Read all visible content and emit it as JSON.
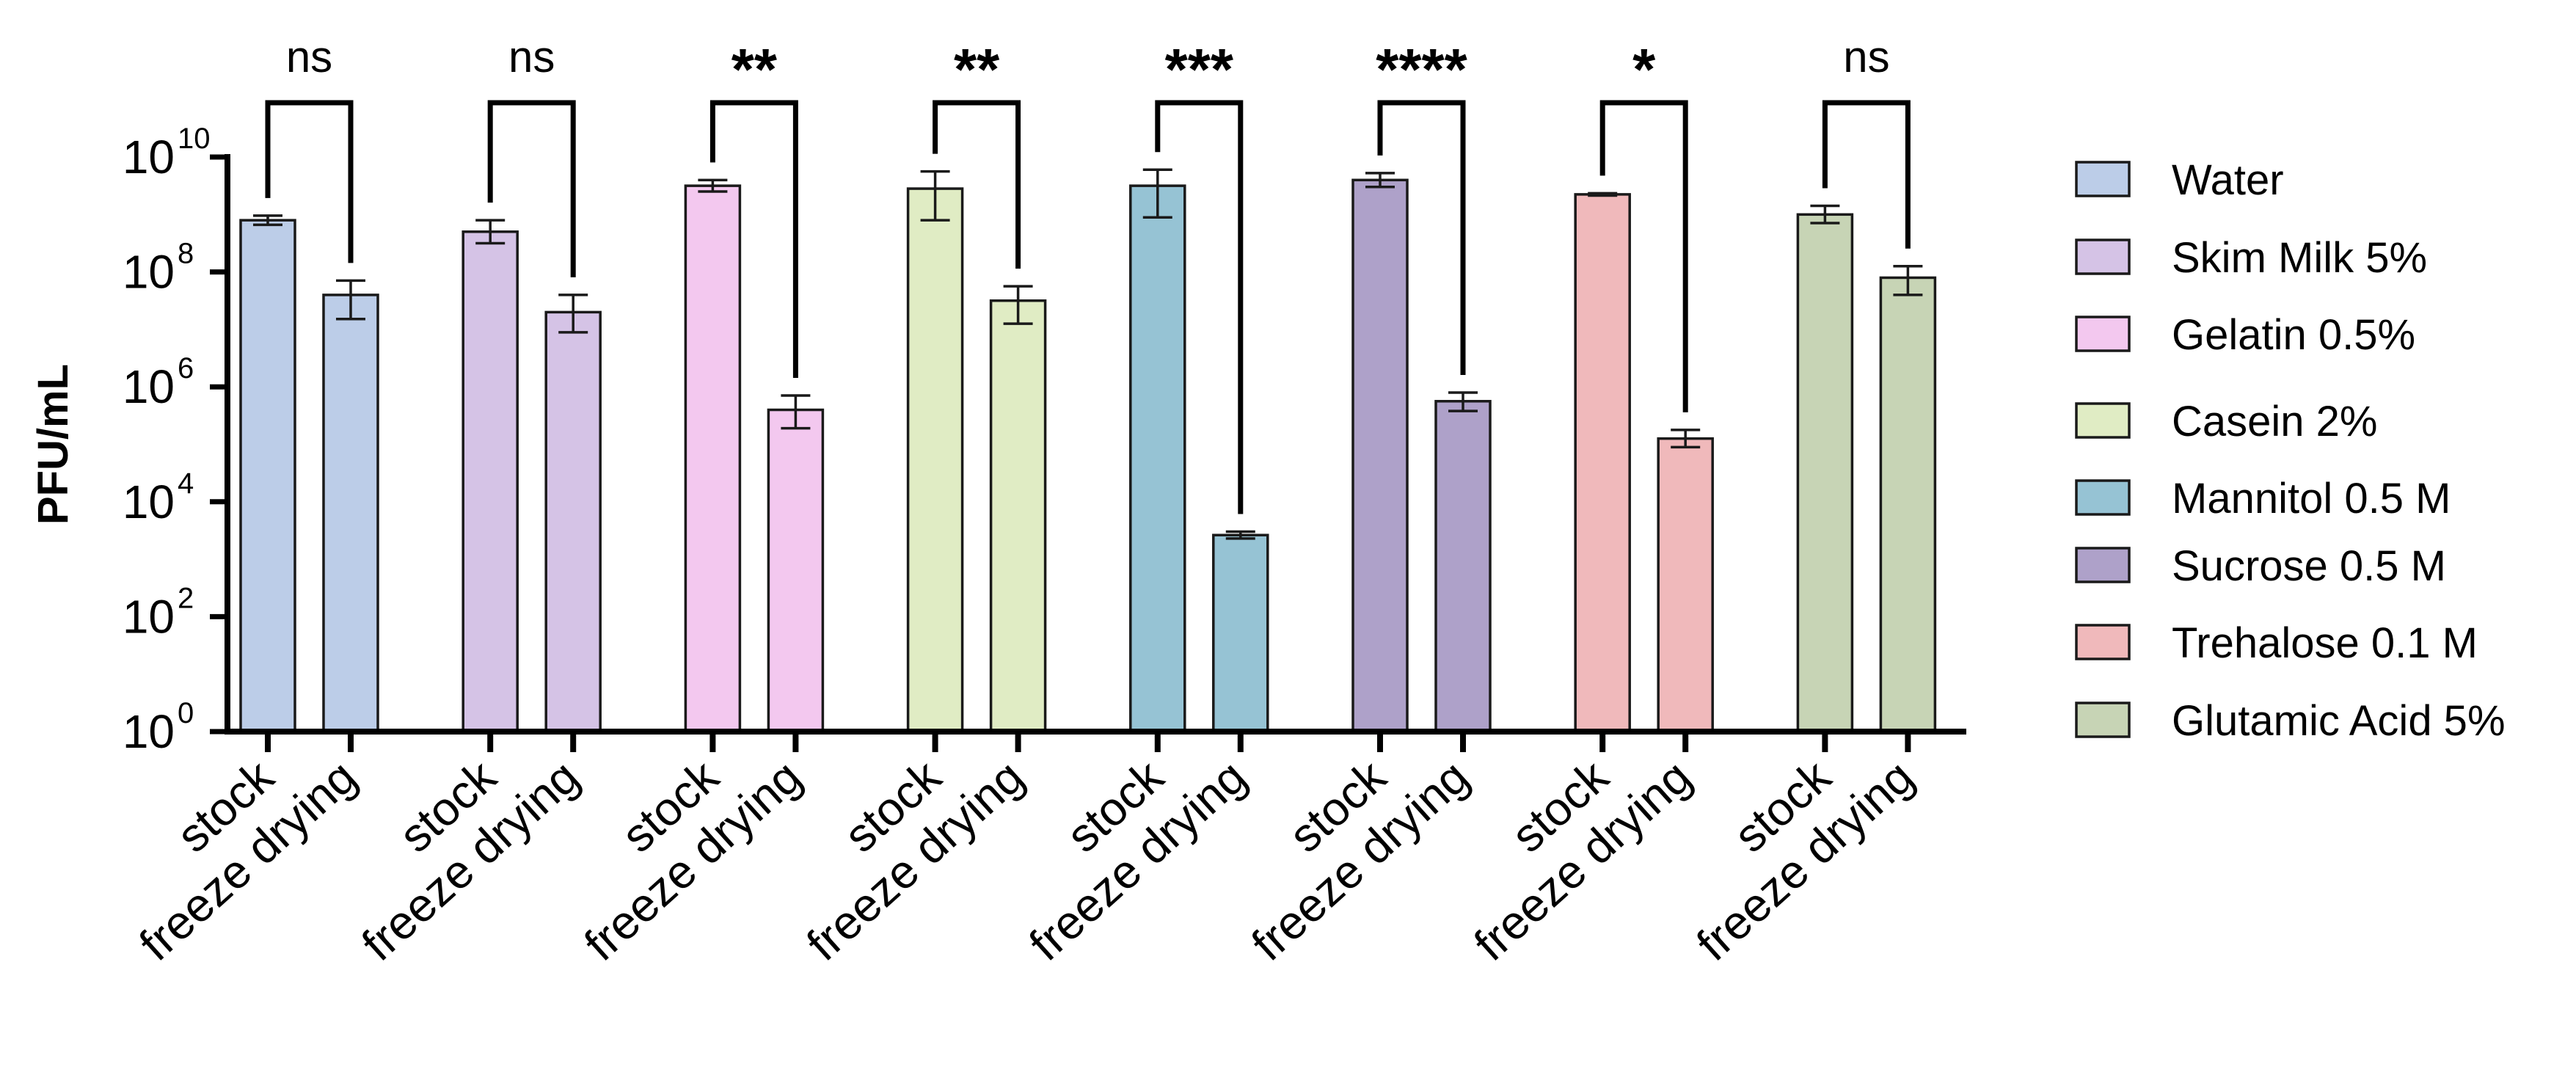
{
  "chart_data": {
    "type": "bar",
    "y_scale": "log10",
    "ylabel": "PFU/mL",
    "ylim_exponents": [
      0,
      10
    ],
    "yticks": [
      {
        "base": "10",
        "exp": "0"
      },
      {
        "base": "10",
        "exp": "2"
      },
      {
        "base": "10",
        "exp": "4"
      },
      {
        "base": "10",
        "exp": "6"
      },
      {
        "base": "10",
        "exp": "8"
      },
      {
        "base": "10",
        "exp": "10"
      }
    ],
    "conditions": [
      "stock",
      "freeze drying"
    ],
    "groups": [
      {
        "name": "Water",
        "color": "#bccde8",
        "stock": {
          "log": 8.9,
          "err_lo": 8.82,
          "err_hi": 8.98
        },
        "freeze": {
          "log": 7.6,
          "err_lo": 7.18,
          "err_hi": 7.85
        },
        "sig": "ns"
      },
      {
        "name": "Skim Milk 5%",
        "color": "#d5c3e6",
        "stock": {
          "log": 8.7,
          "err_lo": 8.5,
          "err_hi": 8.9
        },
        "freeze": {
          "log": 7.3,
          "err_lo": 6.95,
          "err_hi": 7.6
        },
        "sig": "ns"
      },
      {
        "name": "Gelatin 0.5%",
        "color": "#f3c8ef",
        "stock": {
          "log": 9.5,
          "err_lo": 9.4,
          "err_hi": 9.6
        },
        "freeze": {
          "log": 5.6,
          "err_lo": 5.28,
          "err_hi": 5.85
        },
        "sig": "**"
      },
      {
        "name": "Casein 2%",
        "color": "#e0ecc4",
        "stock": {
          "log": 9.45,
          "err_lo": 8.9,
          "err_hi": 9.75
        },
        "freeze": {
          "log": 7.5,
          "err_lo": 7.1,
          "err_hi": 7.75
        },
        "sig": "**"
      },
      {
        "name": "Mannitol 0.5 M",
        "color": "#96c3d4",
        "stock": {
          "log": 9.5,
          "err_lo": 8.95,
          "err_hi": 9.78
        },
        "freeze": {
          "log": 3.42,
          "err_lo": 3.36,
          "err_hi": 3.48
        },
        "sig": "***"
      },
      {
        "name": "Sucrose 0.5 M",
        "color": "#aea1c9",
        "stock": {
          "log": 9.6,
          "err_lo": 9.48,
          "err_hi": 9.72
        },
        "freeze": {
          "log": 5.75,
          "err_lo": 5.58,
          "err_hi": 5.9
        },
        "sig": "****"
      },
      {
        "name": "Trehalose 0.1 M",
        "color": "#f0b9bb",
        "stock": {
          "log": 9.35,
          "err_lo": 9.33,
          "err_hi": 9.37
        },
        "freeze": {
          "log": 5.1,
          "err_lo": 4.95,
          "err_hi": 5.25
        },
        "sig": "*"
      },
      {
        "name": "Glutamic Acid 5%",
        "color": "#c7d4b5",
        "stock": {
          "log": 9.0,
          "err_lo": 8.85,
          "err_hi": 9.15
        },
        "freeze": {
          "log": 7.9,
          "err_lo": 7.6,
          "err_hi": 8.1
        },
        "sig": "ns"
      }
    ],
    "legend_position": "right"
  }
}
